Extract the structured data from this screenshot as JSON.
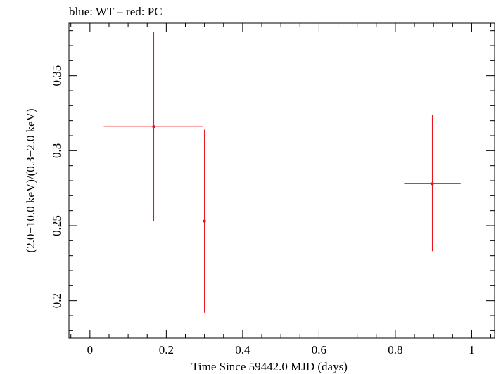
{
  "chart_data": {
    "type": "scatter",
    "title": "blue: WT – red: PC",
    "xlabel": "Time Since 59442.0 MJD (days)",
    "ylabel": "(2.0−10.0 keV)/(0.3−2.0 keV)",
    "xlim": [
      -0.055,
      1.06
    ],
    "ylim": [
      0.175,
      0.385
    ],
    "x_ticks": [
      0,
      0.2,
      0.4,
      0.6,
      0.8,
      1
    ],
    "x_tick_labels": [
      "0",
      "0.2",
      "0.4",
      "0.6",
      "0.8",
      "1"
    ],
    "y_ticks": [
      0.2,
      0.25,
      0.3,
      0.35
    ],
    "y_tick_labels": [
      "0.2",
      "0.25",
      "0.3",
      "0.35"
    ],
    "grid": false,
    "series": [
      {
        "name": "PC",
        "color": "#e8141b",
        "points": [
          {
            "x": 0.167,
            "y": 0.316,
            "xerr_low": 0.131,
            "xerr_high": 0.13,
            "yerr_low": 0.063,
            "yerr_high": 0.063
          },
          {
            "x": 0.3,
            "y": 0.253,
            "xerr_low": 0.003,
            "xerr_high": 0.003,
            "yerr_low": 0.061,
            "yerr_high": 0.061
          },
          {
            "x": 0.897,
            "y": 0.278,
            "xerr_low": 0.074,
            "xerr_high": 0.074,
            "yerr_low": 0.045,
            "yerr_high": 0.046
          }
        ]
      }
    ]
  }
}
